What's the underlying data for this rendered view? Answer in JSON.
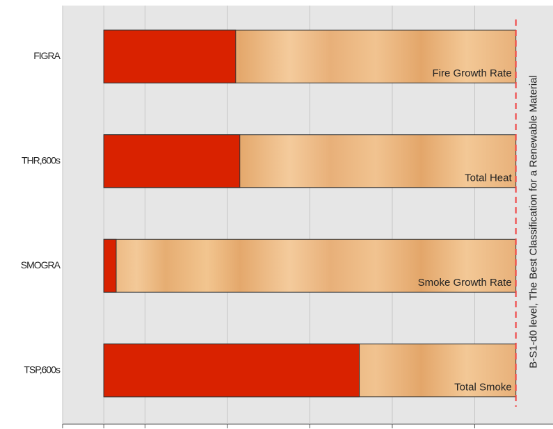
{
  "chart_data": {
    "type": "bar",
    "categories": [
      "FIGRA",
      "THR,600s",
      "SMOGRA",
      "TSP,600s"
    ],
    "values": [
      32,
      33,
      3,
      62
    ],
    "color": "#d92200",
    "bar_labels": [
      "Fire Growth Rate",
      "Total Heat",
      "Smoke Growth Rate",
      "Total Smoke"
    ],
    "limit": 100,
    "limit_label": "B-S1-d0 level, The Best Classification for a Renewable Material",
    "limit_color": "#f04040",
    "xlim": [
      -10,
      109
    ],
    "xticks": [
      -10,
      0,
      10,
      30,
      50,
      70,
      90
    ],
    "grid": true
  }
}
